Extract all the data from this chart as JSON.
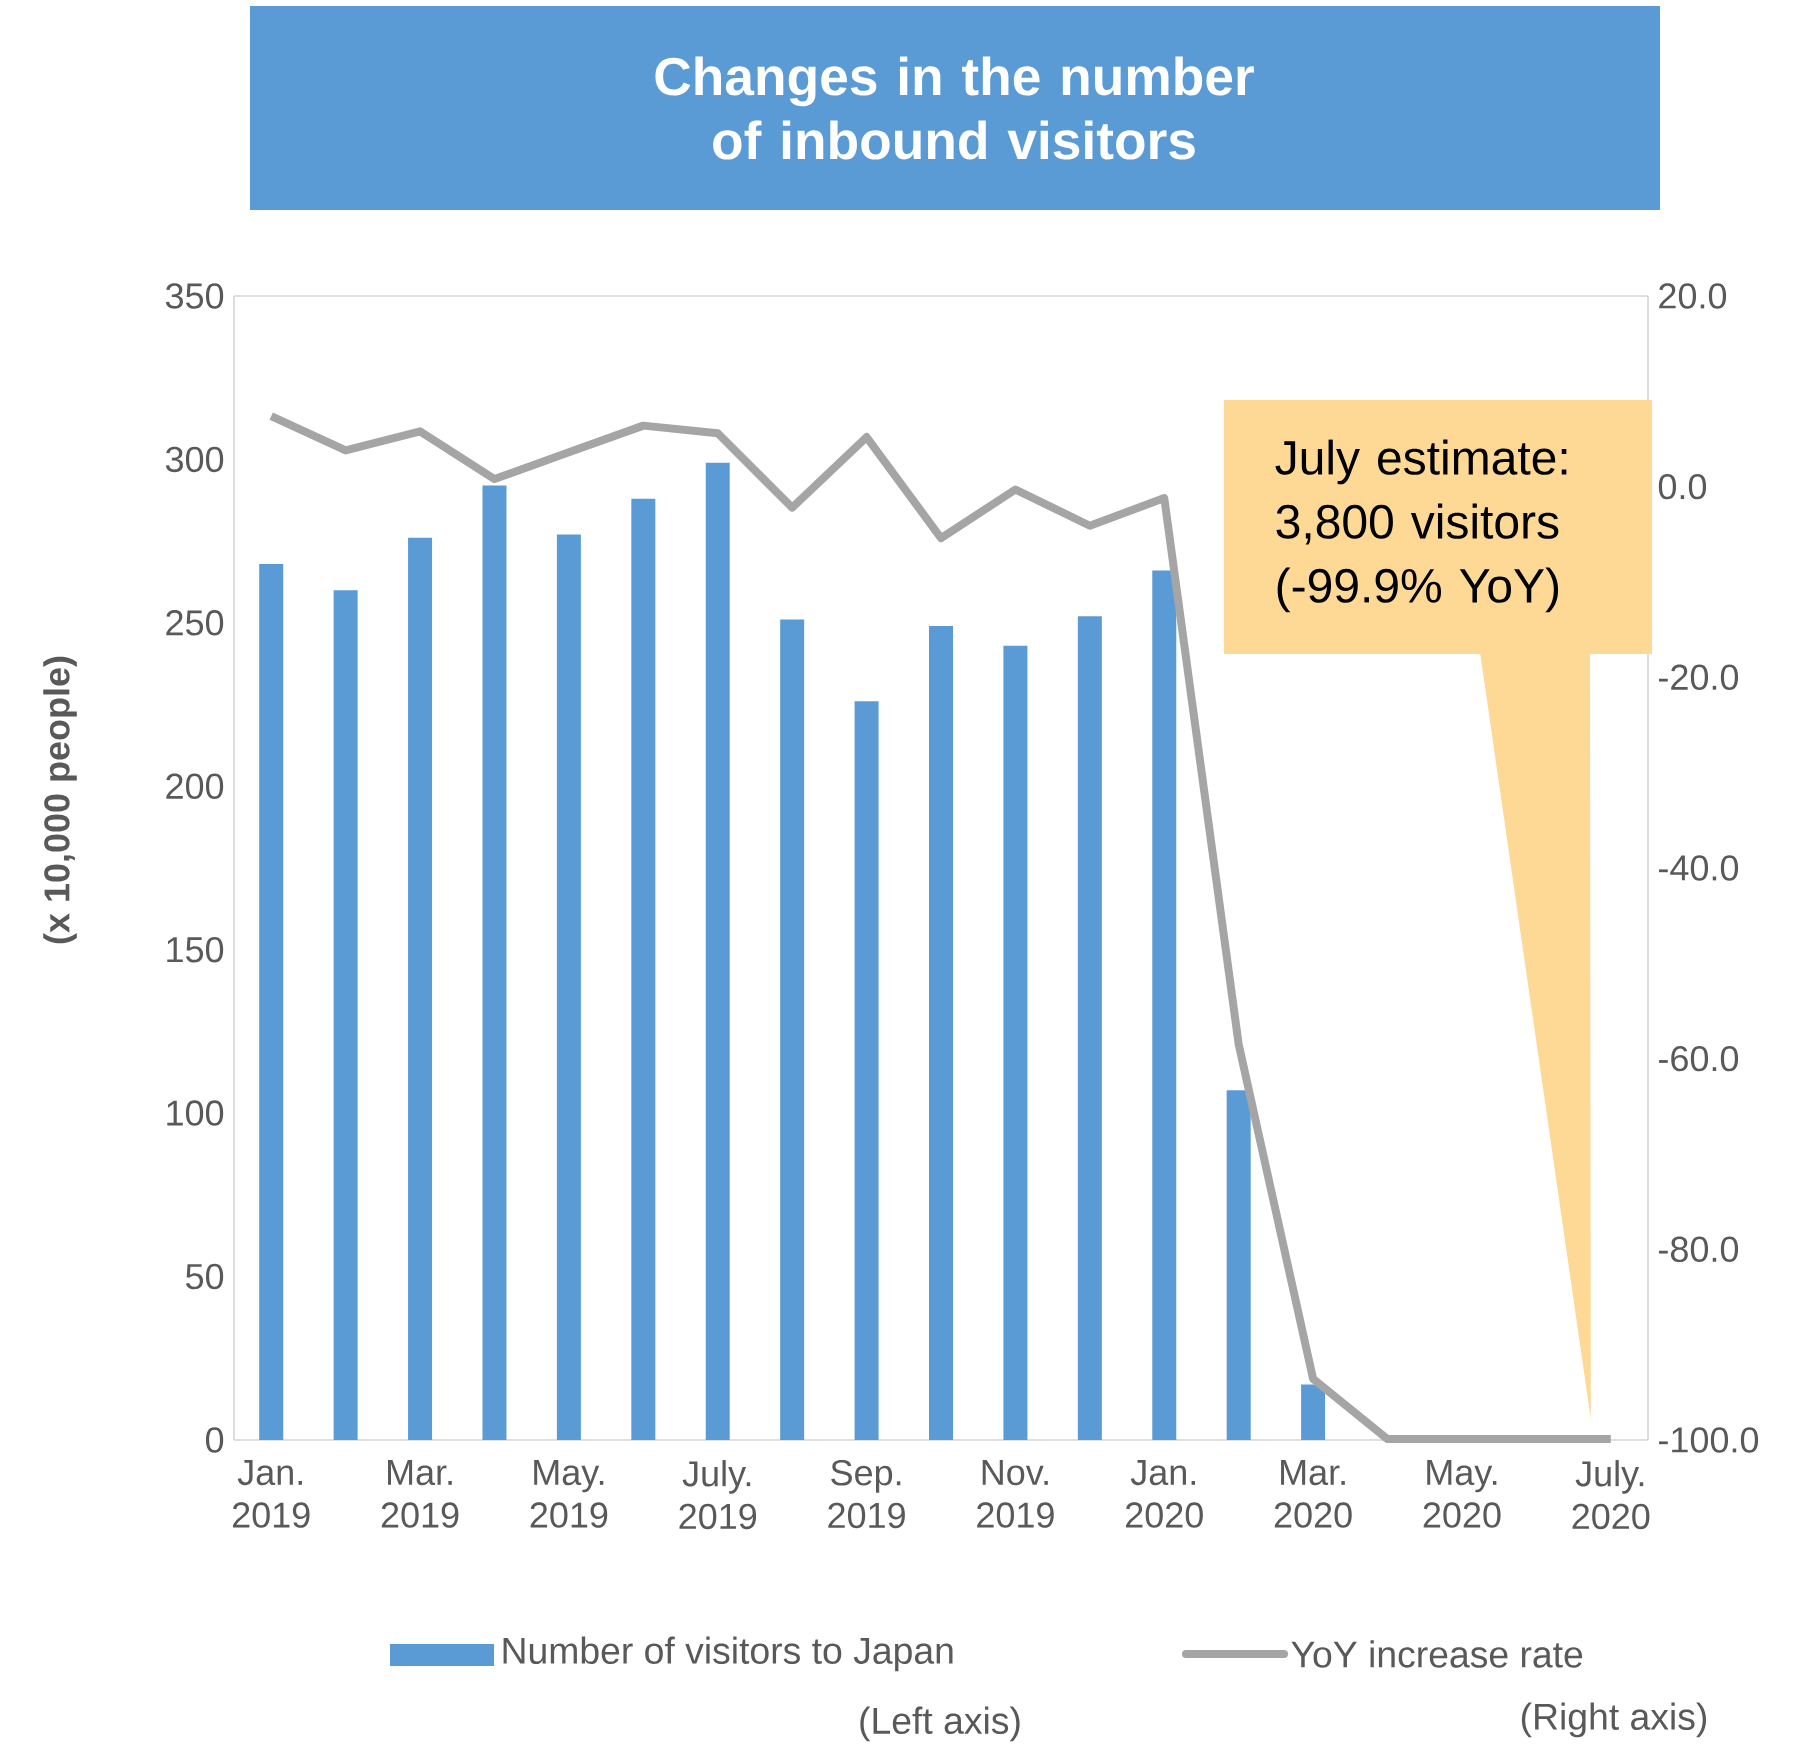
{
  "chart_data": {
    "type": "bar",
    "title": "Changes in the number of inbound visitors",
    "ylabel": "(x 10,000 people)",
    "categories": [
      "Jan. 2019",
      null,
      "Mar. 2019",
      null,
      "May. 2019",
      null,
      "July. 2019",
      null,
      "Sep. 2019",
      null,
      "Nov. 2019",
      null,
      "Jan. 2020",
      null,
      "Mar. 2020",
      null,
      "May. 2020",
      null,
      "July. 2020"
    ],
    "series": [
      {
        "name": "Number of visitors to Japan",
        "color": "#5b9bd5",
        "values": [
          268,
          260,
          276,
          292,
          277,
          288,
          299,
          251,
          226,
          249,
          243,
          252,
          266,
          107,
          17,
          0,
          0,
          0,
          0
        ]
      },
      {
        "name": "YoY increase rate",
        "type": "line",
        "axis": "y2",
        "color": "#a5a5a5",
        "values": [
          7.4,
          3.8,
          5.8,
          0.8,
          3.6,
          6.4,
          5.6,
          -2.2,
          5.2,
          -5.4,
          -0.3,
          -4.1,
          -1.2,
          -58.5,
          -93.6,
          -99.9,
          -99.9,
          -99.9,
          -99.9
        ]
      }
    ],
    "ylim": [
      0,
      350
    ],
    "yticks": [
      0,
      50,
      100,
      150,
      200,
      250,
      300,
      350
    ],
    "y2lim": [
      -100,
      20
    ],
    "y2ticks": [
      {
        "value": -100,
        "label": "-100.0"
      },
      {
        "value": -80,
        "label": "-80.0"
      },
      {
        "value": -60,
        "label": "-60.0"
      },
      {
        "value": -40,
        "label": "-40.0"
      },
      {
        "value": -20,
        "label": "-20.0"
      },
      {
        "value": 0,
        "label": "0.0"
      },
      {
        "value": 20,
        "label": "20.0"
      }
    ],
    "legend": "bottom",
    "annotations": [
      "July estimate: 3,800 visitors (-99.9% YoY)",
      "(Left axis)",
      "(Right axis)"
    ]
  }
}
